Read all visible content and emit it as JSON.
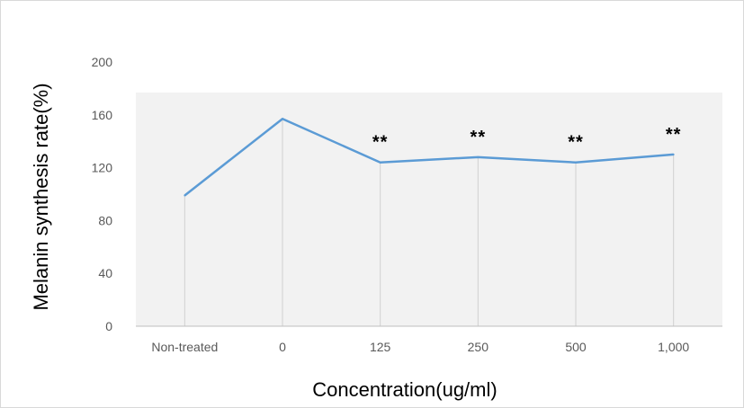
{
  "chart_data": {
    "type": "line",
    "categories": [
      "Non-treated",
      "0",
      "125",
      "250",
      "500",
      "1,000"
    ],
    "series": [
      {
        "values": [
          99,
          157,
          124,
          128,
          124,
          130
        ]
      }
    ],
    "annotations": [
      "",
      "",
      "**",
      "**",
      "**",
      "**"
    ],
    "xlabel": "Concentration(ug/ml)",
    "ylabel": "Melanin  synthesis rate(%)",
    "ylim": [
      0,
      200
    ],
    "yticks": [
      "0",
      "40",
      "80",
      "120",
      "160",
      "200"
    ],
    "grid": false,
    "drop_lines": true,
    "line_color": "#5b9bd5"
  }
}
